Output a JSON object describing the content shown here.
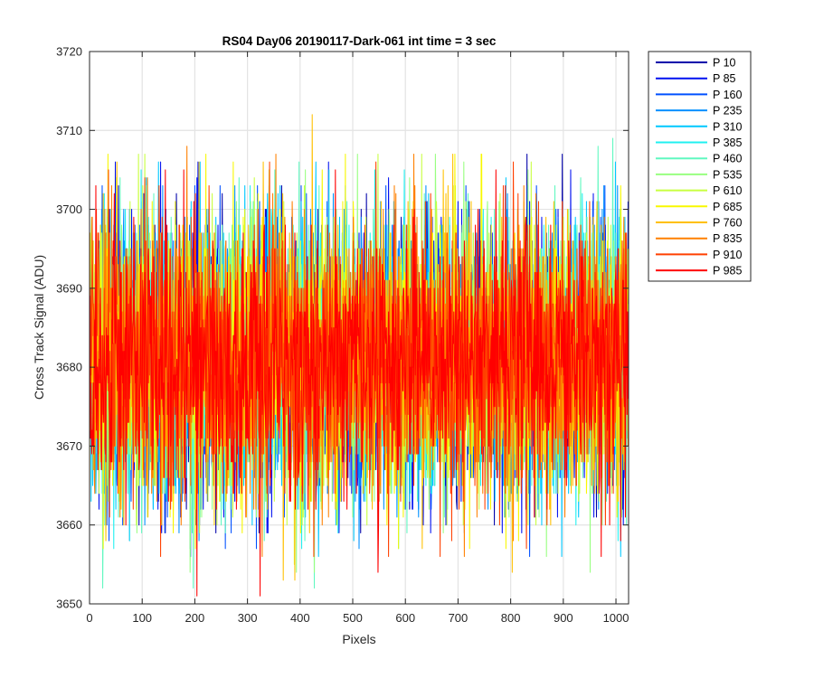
{
  "chart_data": {
    "type": "line",
    "title": "RS04 Day06 20190117-Dark-061 int time = 3 sec",
    "xlabel": "Pixels",
    "ylabel": "Cross Track Signal (ADU)",
    "xlim": [
      0,
      1024
    ],
    "ylim": [
      3650,
      3720
    ],
    "xticks": [
      0,
      100,
      200,
      300,
      400,
      500,
      600,
      700,
      800,
      900,
      1000
    ],
    "yticks": [
      3650,
      3660,
      3670,
      3680,
      3690,
      3700,
      3710,
      3720
    ],
    "grid": true,
    "legend_position": "outside-right",
    "noise_model": {
      "points_per_series": 1024,
      "mean": 3681,
      "typical_min": 3662,
      "typical_max": 3700
    },
    "series": [
      {
        "name": "P 10",
        "color": "#0000aa",
        "mean": 3681,
        "min": 3659,
        "max": 3707
      },
      {
        "name": "P 85",
        "color": "#0010f0",
        "mean": 3681,
        "min": 3659,
        "max": 3706
      },
      {
        "name": "P 160",
        "color": "#0050ff",
        "mean": 3681,
        "min": 3656,
        "max": 3703
      },
      {
        "name": "P 235",
        "color": "#0090ff",
        "mean": 3681,
        "min": 3657,
        "max": 3703
      },
      {
        "name": "P 310",
        "color": "#00c8ff",
        "mean": 3681,
        "min": 3656,
        "max": 3706
      },
      {
        "name": "P 385",
        "color": "#20f0f0",
        "mean": 3681,
        "min": 3657,
        "max": 3705
      },
      {
        "name": "P 460",
        "color": "#60f8c0",
        "mean": 3681,
        "min": 3652,
        "max": 3709
      },
      {
        "name": "P 535",
        "color": "#98ff80",
        "mean": 3681,
        "min": 3654,
        "max": 3707
      },
      {
        "name": "P 610",
        "color": "#c8ff40",
        "mean": 3681,
        "min": 3655,
        "max": 3707
      },
      {
        "name": "P 685",
        "color": "#f8f800",
        "mean": 3681,
        "min": 3657,
        "max": 3707
      },
      {
        "name": "P 760",
        "color": "#ffc000",
        "mean": 3681,
        "min": 3653,
        "max": 3712
      },
      {
        "name": "P 835",
        "color": "#ff8000",
        "mean": 3681,
        "min": 3656,
        "max": 3708
      },
      {
        "name": "P 910",
        "color": "#ff4000",
        "mean": 3681,
        "min": 3656,
        "max": 3706
      },
      {
        "name": "P 985",
        "color": "#ff0000",
        "mean": 3681,
        "min": 3651,
        "max": 3705
      }
    ]
  }
}
